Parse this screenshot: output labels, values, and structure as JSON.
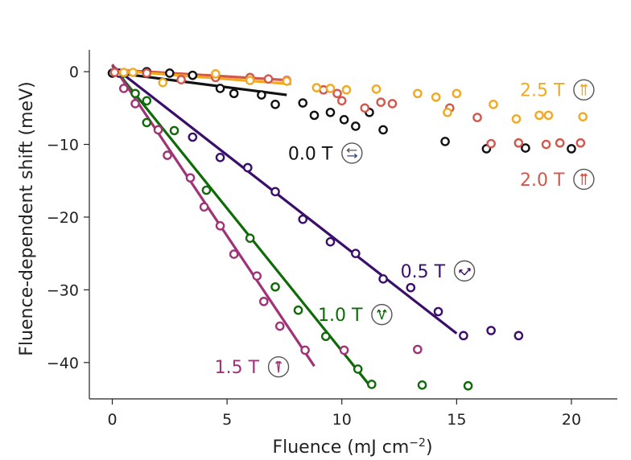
{
  "chart_data": {
    "type": "scatter",
    "xlabel": "Fluence (mJ cm",
    "xlabel_sup": "−2",
    "xlabel_end": ")",
    "ylabel": "Fluence-dependent shift (meV)",
    "xlim": [
      -1,
      22
    ],
    "ylim": [
      -45,
      3
    ],
    "xticks": [
      0,
      5,
      10,
      15,
      20
    ],
    "yticks": [
      0,
      -10,
      -20,
      -30,
      -40
    ],
    "xtick_labels": [
      "0",
      "5",
      "10",
      "15",
      "20"
    ],
    "ytick_labels": [
      "0",
      "−10",
      "−20",
      "−30",
      "−40"
    ],
    "grid": false,
    "series": [
      {
        "name": "0.0 T",
        "color": "#111111",
        "icon": "field-0-icon",
        "points": [
          [
            0,
            -0.2
          ],
          [
            1.5,
            0
          ],
          [
            2.5,
            -0.2
          ],
          [
            3.5,
            -0.5
          ],
          [
            4.7,
            -2.3
          ],
          [
            5.3,
            -3
          ],
          [
            6.5,
            -3.2
          ],
          [
            7.1,
            -4.5
          ],
          [
            8.3,
            -4.3
          ],
          [
            8.8,
            -6
          ],
          [
            9.5,
            -5.6
          ],
          [
            10.1,
            -6.6
          ],
          [
            10.6,
            -7.5
          ],
          [
            11.2,
            -5.6
          ],
          [
            11.8,
            -8
          ],
          [
            14.5,
            -9.6
          ],
          [
            16.3,
            -10.6
          ],
          [
            18,
            -10.5
          ],
          [
            20,
            -10.6
          ]
        ],
        "fit": [
          [
            0,
            -0.1
          ],
          [
            7.6,
            -3.2
          ]
        ]
      },
      {
        "name": "0.5 T",
        "color": "#3a0f6b",
        "icon": "field-05-icon",
        "points": [
          [
            0.3,
            -0.2
          ],
          [
            3.5,
            -9
          ],
          [
            4.7,
            -11.8
          ],
          [
            5.9,
            -13.2
          ],
          [
            7.1,
            -16.5
          ],
          [
            8.3,
            -20.3
          ],
          [
            9.5,
            -23.4
          ],
          [
            10.6,
            -25
          ],
          [
            11.8,
            -28.5
          ],
          [
            13,
            -29.7
          ],
          [
            14.2,
            -33
          ],
          [
            15.3,
            -36.3
          ],
          [
            16.5,
            -35.6
          ],
          [
            17.7,
            -36.3
          ]
        ],
        "fit": [
          [
            0,
            0.8
          ],
          [
            15,
            -36
          ]
        ]
      },
      {
        "name": "1.0 T",
        "color": "#0e6b07",
        "icon": "field-1-icon",
        "points": [
          [
            0.5,
            -0.2
          ],
          [
            1,
            -3
          ],
          [
            1.5,
            -4
          ],
          [
            1.5,
            -7
          ],
          [
            2.7,
            -8.1
          ],
          [
            4.1,
            -16.3
          ],
          [
            6,
            -22.9
          ],
          [
            7.1,
            -29.6
          ],
          [
            8.1,
            -32.8
          ],
          [
            9.3,
            -36.4
          ],
          [
            10.7,
            -40.9
          ],
          [
            11.3,
            -43
          ],
          [
            13.5,
            -43.1
          ],
          [
            15.5,
            -43.2
          ]
        ],
        "fit": [
          [
            0,
            0.8
          ],
          [
            11.3,
            -43.5
          ]
        ]
      },
      {
        "name": "1.5 T",
        "color": "#a03377",
        "icon": "field-15-icon",
        "points": [
          [
            0.5,
            -2.3
          ],
          [
            1,
            -4.4
          ],
          [
            2,
            -8
          ],
          [
            2.4,
            -11.5
          ],
          [
            3.4,
            -14.6
          ],
          [
            4,
            -18.6
          ],
          [
            4.7,
            -21.2
          ],
          [
            5.3,
            -25.1
          ],
          [
            6.3,
            -28.1
          ],
          [
            6.6,
            -31.6
          ],
          [
            7.3,
            -35
          ],
          [
            8.4,
            -38.3
          ],
          [
            10.1,
            -38.3
          ],
          [
            13.3,
            -38.2
          ]
        ],
        "fit": [
          [
            0,
            1
          ],
          [
            8.8,
            -40.5
          ]
        ]
      },
      {
        "name": "2.0 T",
        "color": "#d2574c",
        "icon": "field-2-icon",
        "points": [
          [
            0.1,
            -0.1
          ],
          [
            1.5,
            -0.2
          ],
          [
            3,
            -1.1
          ],
          [
            4.5,
            -0.8
          ],
          [
            6,
            -0.8
          ],
          [
            6.8,
            -1
          ],
          [
            7.6,
            -1.2
          ],
          [
            9.2,
            -2.5
          ],
          [
            9.8,
            -3
          ],
          [
            10,
            -4
          ],
          [
            11,
            -5
          ],
          [
            11.7,
            -4.2
          ],
          [
            12.2,
            -4.4
          ],
          [
            14.7,
            -5
          ],
          [
            15.9,
            -6.3
          ],
          [
            16.5,
            -9.9
          ],
          [
            17.7,
            -9.8
          ],
          [
            18.9,
            -10
          ],
          [
            19.5,
            -9.8
          ],
          [
            20.4,
            -9.8
          ]
        ],
        "fit": [
          [
            0,
            0.3
          ],
          [
            7.8,
            -1.2
          ]
        ]
      },
      {
        "name": "2.5 T",
        "color": "#f0a922",
        "icon": "field-25-icon",
        "points": [
          [
            0.5,
            -0.1
          ],
          [
            0.9,
            -0.1
          ],
          [
            2.2,
            -1.5
          ],
          [
            4.5,
            -0.3
          ],
          [
            6,
            -1.2
          ],
          [
            7.6,
            -1.3
          ],
          [
            8.9,
            -2.2
          ],
          [
            9.5,
            -2.3
          ],
          [
            10.2,
            -2.5
          ],
          [
            11.5,
            -2.4
          ],
          [
            13.3,
            -3
          ],
          [
            14.1,
            -3.5
          ],
          [
            14.6,
            -5.6
          ],
          [
            15,
            -3
          ],
          [
            16.6,
            -4.5
          ],
          [
            17.6,
            -6.5
          ],
          [
            18.6,
            -6
          ],
          [
            19,
            -6
          ],
          [
            20.5,
            -6.2
          ]
        ],
        "fit": [
          [
            0,
            0.2
          ],
          [
            7.8,
            -1.7
          ]
        ]
      }
    ],
    "annotations": [
      {
        "text": "0.0 T",
        "series": 0,
        "x": 9.6,
        "y": -11.2,
        "icon": "field-0-icon"
      },
      {
        "text": "0.5 T",
        "series": 1,
        "x": 14.5,
        "y": -27.4,
        "icon": "field-05-icon"
      },
      {
        "text": "1.0 T",
        "series": 2,
        "x": 10.9,
        "y": -33.4,
        "icon": "field-1-icon"
      },
      {
        "text": "1.5 T",
        "series": 3,
        "x": 6.4,
        "y": -40.6,
        "icon": "field-15-icon"
      },
      {
        "text": "2.0 T",
        "series": 4,
        "x": 19.7,
        "y": -14.8,
        "icon": "field-2-icon"
      },
      {
        "text": "2.5 T",
        "series": 5,
        "x": 19.7,
        "y": -2.5,
        "icon": "field-25-icon"
      }
    ]
  }
}
